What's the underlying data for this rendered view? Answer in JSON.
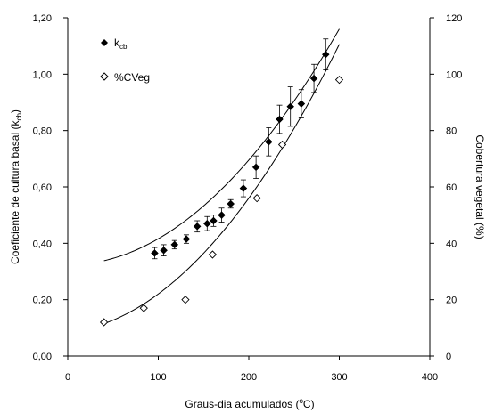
{
  "chart_data": {
    "type": "scatter",
    "xlabel_main": "Graus-dia acumulados (",
    "xlabel_sup": "o",
    "xlabel_tail": "C)",
    "ylabel_left_main": "Coeficiente de cultura basal (k",
    "ylabel_left_sub": "cb",
    "ylabel_left_tail": ")",
    "ylabel_right": "Cobertura vegetal (%)",
    "xlim": [
      0,
      400
    ],
    "ylim_left": [
      0,
      1.2
    ],
    "ylim_right": [
      0,
      120
    ],
    "x_ticks": [
      "0",
      "100",
      "200",
      "300",
      "400"
    ],
    "y_left_ticks": [
      "0,00",
      "0,20",
      "0,40",
      "0,60",
      "0,80",
      "1,00",
      "1,20"
    ],
    "y_right_ticks": [
      "0",
      "20",
      "40",
      "60",
      "80",
      "100",
      "120"
    ],
    "legend": {
      "kcb_main": "k",
      "kcb_sub": "cb",
      "cveg": "%CVeg",
      "position": "top-left"
    },
    "series": [
      {
        "key": "kcb",
        "axis": "left",
        "marker": "filled-diamond",
        "x": [
          96,
          106,
          118,
          131,
          143,
          154,
          161,
          170,
          180,
          194,
          208,
          222,
          234,
          246,
          258,
          272,
          285
        ],
        "y": [
          0.365,
          0.375,
          0.395,
          0.415,
          0.46,
          0.47,
          0.48,
          0.5,
          0.54,
          0.595,
          0.67,
          0.76,
          0.84,
          0.885,
          0.895,
          0.985,
          1.07
        ],
        "err": [
          0.02,
          0.02,
          0.015,
          0.015,
          0.02,
          0.025,
          0.02,
          0.025,
          0.015,
          0.03,
          0.04,
          0.05,
          0.05,
          0.07,
          0.05,
          0.05,
          0.055
        ]
      },
      {
        "key": "cveg",
        "axis": "right",
        "marker": "open-diamond",
        "x": [
          40,
          84,
          130,
          160,
          209,
          237,
          300
        ],
        "y": [
          12,
          17,
          20,
          36,
          56,
          75,
          98
        ]
      }
    ],
    "trendlines": [
      {
        "key": "kcb",
        "axis": "left",
        "x_range": [
          40,
          300
        ],
        "coefficients": [
          0.3232,
          0.0,
          9.3e-06
        ]
      },
      {
        "key": "cveg",
        "axis": "right",
        "x_range": [
          40,
          300
        ],
        "coefficients": [
          8.6,
          0.0313,
          0.001029
        ]
      }
    ]
  }
}
